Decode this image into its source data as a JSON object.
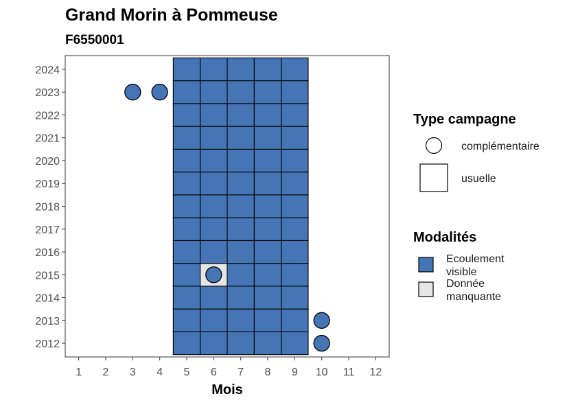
{
  "chart_data": {
    "type": "heatmap",
    "title": "Grand Morin à Pommeuse",
    "subtitle": "F6550001",
    "xlabel": "Mois",
    "ylabel": "",
    "x_ticks": [
      1,
      2,
      3,
      4,
      5,
      6,
      7,
      8,
      9,
      10,
      11,
      12
    ],
    "y_ticks": [
      2012,
      2013,
      2014,
      2015,
      2016,
      2017,
      2018,
      2019,
      2020,
      2021,
      2022,
      2023,
      2024
    ],
    "xlim": [
      0.5,
      12.5
    ],
    "ylim": [
      2011.4,
      2024.6
    ],
    "grid": false,
    "legend_position": "right",
    "colors": {
      "Ecoulement visible": "#4575b4",
      "Donnée manquante": "#e6e6e6"
    },
    "legend": {
      "shape_title": "Type campagne",
      "shape_entries": [
        {
          "label": "complémentaire",
          "shape": "circle"
        },
        {
          "label": "usuelle",
          "shape": "square"
        }
      ],
      "fill_title": "Modalités",
      "fill_entries": [
        {
          "label_lines": [
            "Ecoulement",
            "visible"
          ],
          "category": "Ecoulement visible"
        },
        {
          "label_lines": [
            "Donnée",
            "manquante"
          ],
          "category": "Donnée manquante"
        }
      ]
    },
    "usuelle": {
      "months": [
        5,
        6,
        7,
        8,
        9
      ],
      "years": [
        2012,
        2013,
        2014,
        2015,
        2016,
        2017,
        2018,
        2019,
        2020,
        2021,
        2022,
        2023,
        2024
      ],
      "default_modalite": "Ecoulement visible",
      "exceptions": [
        {
          "month": 6,
          "year": 2015,
          "modalite": "Donnée manquante"
        }
      ]
    },
    "complementaire": [
      {
        "month": 3,
        "year": 2023,
        "modalite": "Ecoulement visible"
      },
      {
        "month": 4,
        "year": 2023,
        "modalite": "Ecoulement visible"
      },
      {
        "month": 6,
        "year": 2015,
        "modalite": "Ecoulement visible"
      },
      {
        "month": 10,
        "year": 2013,
        "modalite": "Ecoulement visible"
      },
      {
        "month": 10,
        "year": 2012,
        "modalite": "Ecoulement visible"
      }
    ]
  }
}
